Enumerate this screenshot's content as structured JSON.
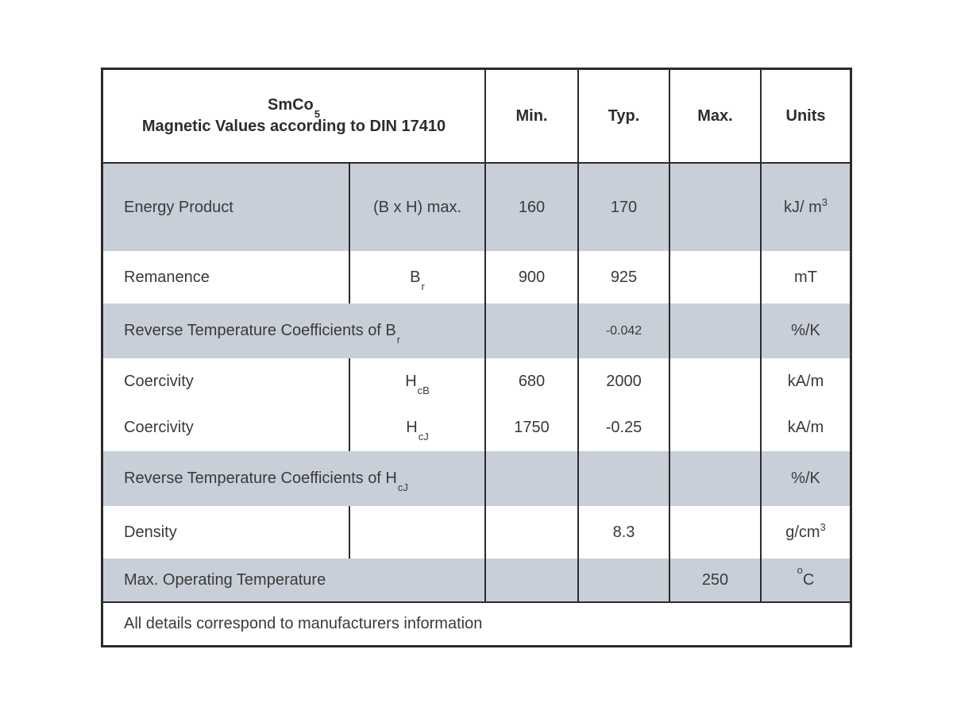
{
  "table": {
    "header": {
      "title_material": "SmCo",
      "title_material_sub": "5",
      "title_line2": "Magnetic Values according to DIN 17410",
      "col_min": "Min.",
      "col_typ": "Typ.",
      "col_max": "Max.",
      "col_units": "Units"
    },
    "rows": [
      {
        "label": "Energy Product",
        "symbol": "(B x H) max.",
        "symbol_sub": "",
        "min": "160",
        "typ": "170",
        "max": "",
        "unit": "kJ/ m",
        "unit_sup": "3",
        "unit_presup": ""
      },
      {
        "label": "Remanence",
        "symbol": "B",
        "symbol_sub": "r",
        "min": "900",
        "typ": "925",
        "max": "",
        "unit": "mT",
        "unit_sup": "",
        "unit_presup": ""
      },
      {
        "label": "Reverse Temperature Coefficients of B",
        "label_sub": "r",
        "min": "",
        "typ": "-0.042",
        "max": "",
        "unit": "%/K",
        "unit_sup": "",
        "unit_presup": ""
      },
      {
        "label": "Coercivity",
        "symbol": "H",
        "symbol_sub": "cB",
        "min": "680",
        "typ": "2000",
        "max": "",
        "unit": "kA/m",
        "unit_sup": "",
        "unit_presup": ""
      },
      {
        "label": "Coercivity",
        "symbol": "H",
        "symbol_sub": "cJ",
        "min": "1750",
        "typ": "-0.25",
        "max": "",
        "unit": "kA/m",
        "unit_sup": "",
        "unit_presup": ""
      },
      {
        "label": "Reverse Temperature Coefficients of H",
        "label_sub": "cJ",
        "min": "",
        "typ": "",
        "max": "",
        "unit": "%/K",
        "unit_sup": "",
        "unit_presup": ""
      },
      {
        "label": "Density",
        "symbol": "",
        "symbol_sub": "",
        "min": "",
        "typ": "8.3",
        "max": "",
        "unit": "g/cm",
        "unit_sup": "3",
        "unit_presup": ""
      },
      {
        "label": "Max. Operating Temperature",
        "label_sub": "",
        "min": "",
        "typ": "",
        "max": "250",
        "unit": "C",
        "unit_sup": "",
        "unit_presup": "o"
      }
    ],
    "footer": "All details correspond to manufacturers information",
    "colors": {
      "row_shade": "#c9cfd9",
      "border": "#2b2b2b",
      "text": "#3a3a3a"
    }
  }
}
